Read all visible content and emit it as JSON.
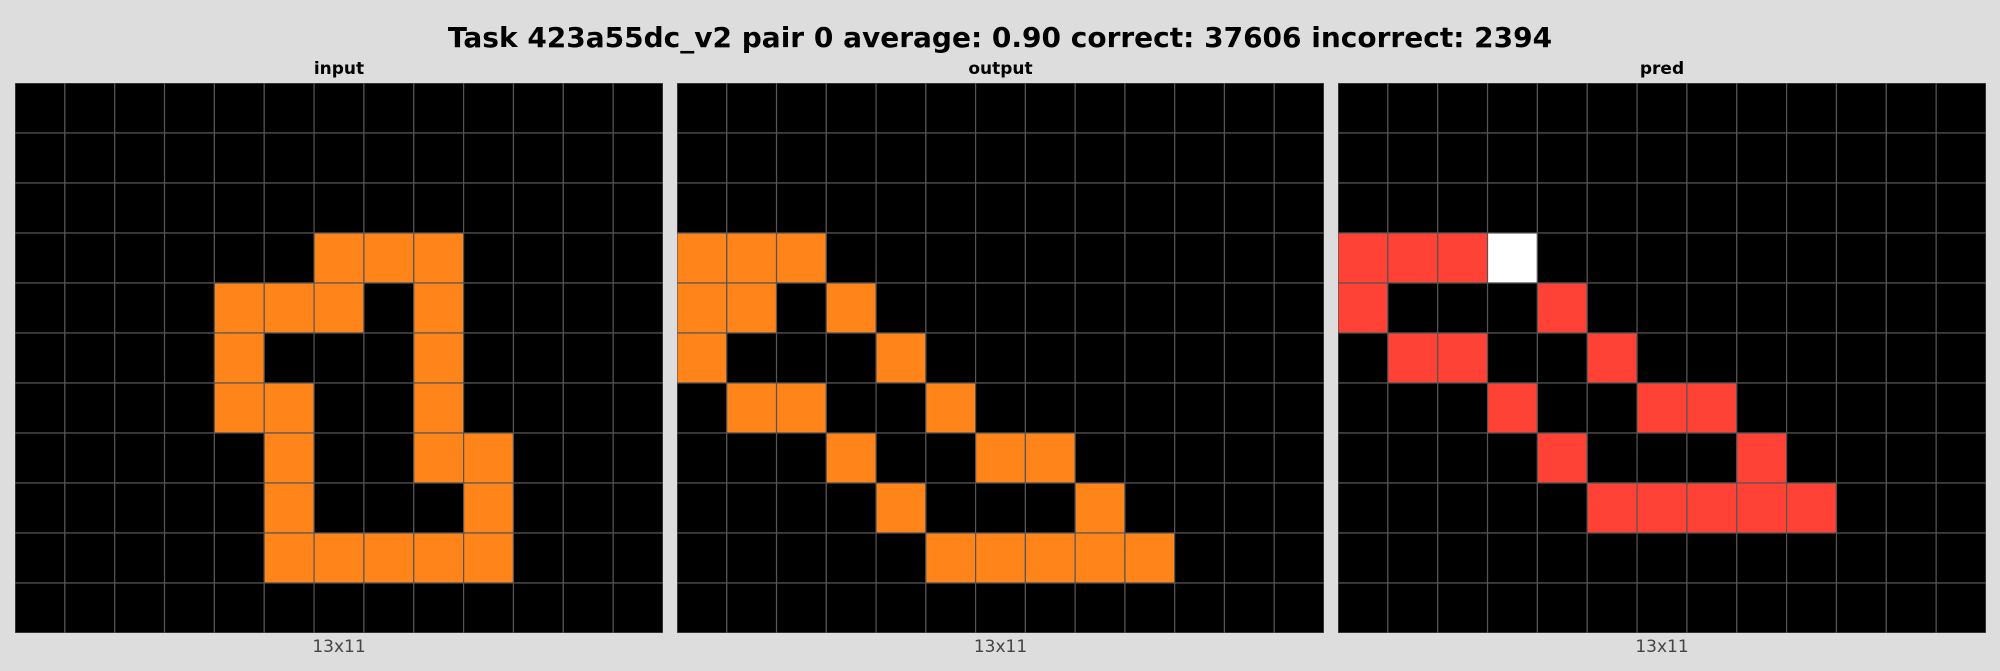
{
  "title": "Task 423a55dc_v2 pair 0 average: 0.90 correct: 37606 incorrect: 2394",
  "palette": {
    "0": "#000000",
    "2": "#ff4136",
    "5": "#ffffff",
    "7": "#ff851b"
  },
  "grid_line_color": "#555555",
  "panels": [
    {
      "id": "input",
      "title": "input",
      "dims": "13x11",
      "grid": [
        [
          0,
          0,
          0,
          0,
          0,
          0,
          0,
          0,
          0,
          0,
          0,
          0,
          0
        ],
        [
          0,
          0,
          0,
          0,
          0,
          0,
          0,
          0,
          0,
          0,
          0,
          0,
          0
        ],
        [
          0,
          0,
          0,
          0,
          0,
          0,
          0,
          0,
          0,
          0,
          0,
          0,
          0
        ],
        [
          0,
          0,
          0,
          0,
          0,
          0,
          7,
          7,
          7,
          0,
          0,
          0,
          0
        ],
        [
          0,
          0,
          0,
          0,
          7,
          7,
          7,
          0,
          7,
          0,
          0,
          0,
          0
        ],
        [
          0,
          0,
          0,
          0,
          7,
          0,
          0,
          0,
          7,
          0,
          0,
          0,
          0
        ],
        [
          0,
          0,
          0,
          0,
          7,
          7,
          0,
          0,
          7,
          0,
          0,
          0,
          0
        ],
        [
          0,
          0,
          0,
          0,
          0,
          7,
          0,
          0,
          7,
          7,
          0,
          0,
          0
        ],
        [
          0,
          0,
          0,
          0,
          0,
          7,
          0,
          0,
          0,
          7,
          0,
          0,
          0
        ],
        [
          0,
          0,
          0,
          0,
          0,
          7,
          7,
          7,
          7,
          7,
          0,
          0,
          0
        ],
        [
          0,
          0,
          0,
          0,
          0,
          0,
          0,
          0,
          0,
          0,
          0,
          0,
          0
        ]
      ]
    },
    {
      "id": "output",
      "title": "output",
      "dims": "13x11",
      "grid": [
        [
          0,
          0,
          0,
          0,
          0,
          0,
          0,
          0,
          0,
          0,
          0,
          0,
          0
        ],
        [
          0,
          0,
          0,
          0,
          0,
          0,
          0,
          0,
          0,
          0,
          0,
          0,
          0
        ],
        [
          0,
          0,
          0,
          0,
          0,
          0,
          0,
          0,
          0,
          0,
          0,
          0,
          0
        ],
        [
          7,
          7,
          7,
          0,
          0,
          0,
          0,
          0,
          0,
          0,
          0,
          0,
          0
        ],
        [
          7,
          7,
          0,
          7,
          0,
          0,
          0,
          0,
          0,
          0,
          0,
          0,
          0
        ],
        [
          7,
          0,
          0,
          0,
          7,
          0,
          0,
          0,
          0,
          0,
          0,
          0,
          0
        ],
        [
          0,
          7,
          7,
          0,
          0,
          7,
          0,
          0,
          0,
          0,
          0,
          0,
          0
        ],
        [
          0,
          0,
          0,
          7,
          0,
          0,
          7,
          7,
          0,
          0,
          0,
          0,
          0
        ],
        [
          0,
          0,
          0,
          0,
          7,
          0,
          0,
          0,
          7,
          0,
          0,
          0,
          0
        ],
        [
          0,
          0,
          0,
          0,
          0,
          7,
          7,
          7,
          7,
          7,
          0,
          0,
          0
        ],
        [
          0,
          0,
          0,
          0,
          0,
          0,
          0,
          0,
          0,
          0,
          0,
          0,
          0
        ]
      ]
    },
    {
      "id": "pred",
      "title": "pred",
      "dims": "13x11",
      "grid": [
        [
          0,
          0,
          0,
          0,
          0,
          0,
          0,
          0,
          0,
          0,
          0,
          0,
          0
        ],
        [
          0,
          0,
          0,
          0,
          0,
          0,
          0,
          0,
          0,
          0,
          0,
          0,
          0
        ],
        [
          0,
          0,
          0,
          0,
          0,
          0,
          0,
          0,
          0,
          0,
          0,
          0,
          0
        ],
        [
          2,
          2,
          2,
          5,
          0,
          0,
          0,
          0,
          0,
          0,
          0,
          0,
          0
        ],
        [
          2,
          0,
          0,
          0,
          2,
          0,
          0,
          0,
          0,
          0,
          0,
          0,
          0
        ],
        [
          0,
          2,
          2,
          0,
          0,
          2,
          0,
          0,
          0,
          0,
          0,
          0,
          0
        ],
        [
          0,
          0,
          0,
          2,
          0,
          0,
          2,
          2,
          0,
          0,
          0,
          0,
          0
        ],
        [
          0,
          0,
          0,
          0,
          2,
          0,
          0,
          0,
          2,
          0,
          0,
          0,
          0
        ],
        [
          0,
          0,
          0,
          0,
          0,
          2,
          2,
          2,
          2,
          2,
          0,
          0,
          0
        ],
        [
          0,
          0,
          0,
          0,
          0,
          0,
          0,
          0,
          0,
          0,
          0,
          0,
          0
        ],
        [
          0,
          0,
          0,
          0,
          0,
          0,
          0,
          0,
          0,
          0,
          0,
          0,
          0
        ]
      ]
    }
  ]
}
